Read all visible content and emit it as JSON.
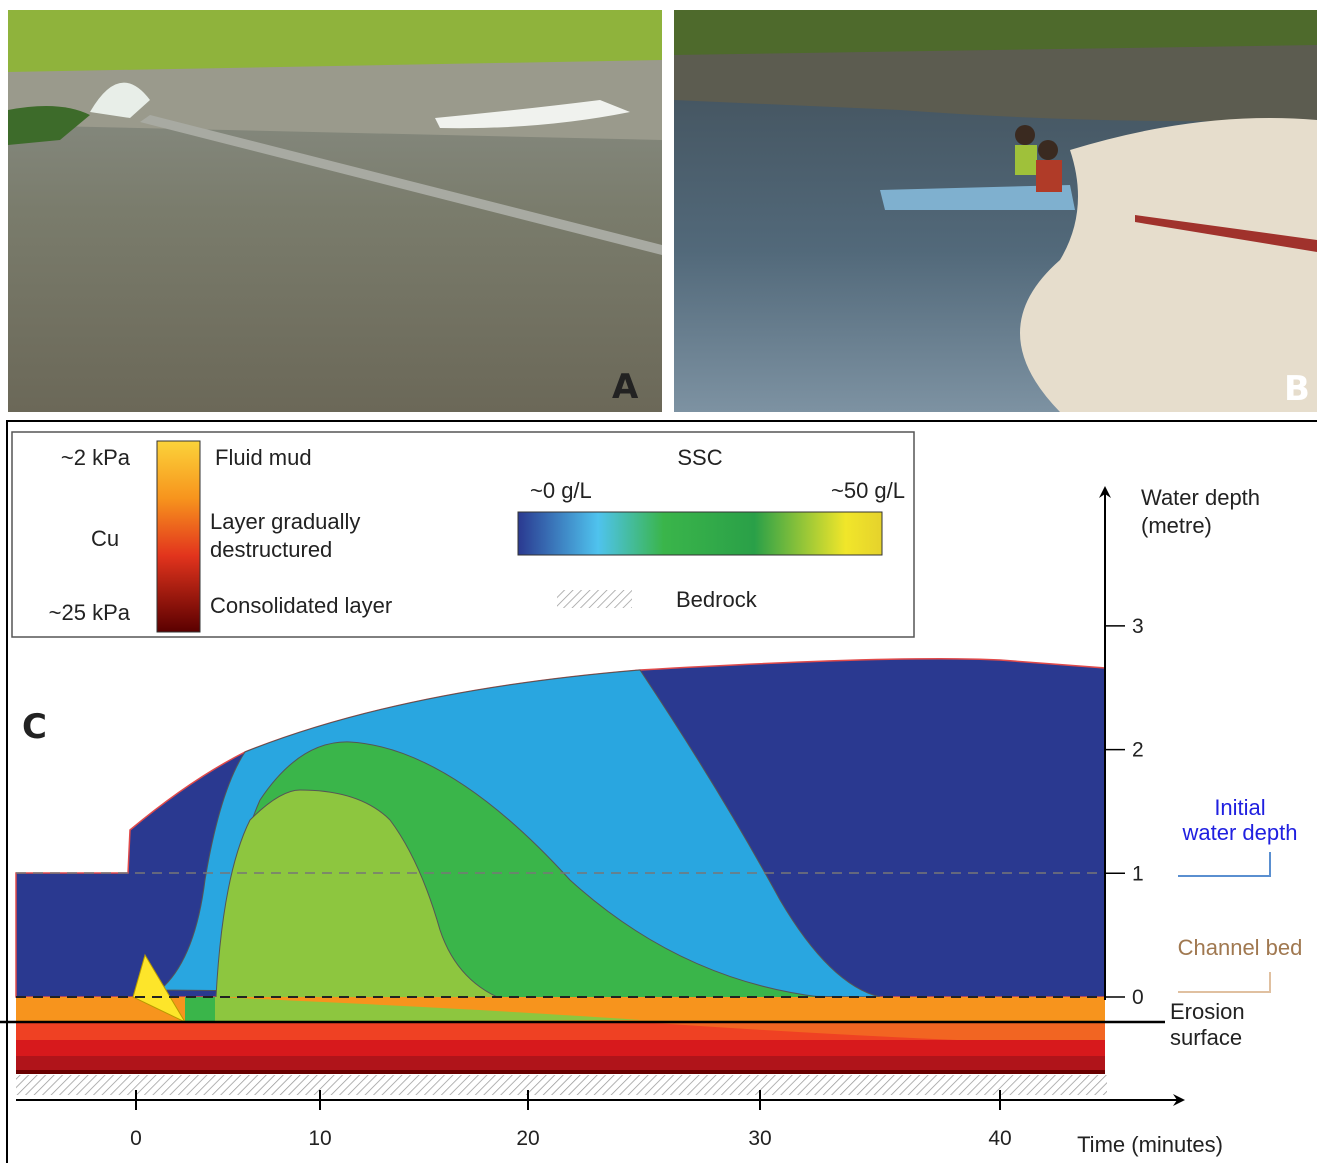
{
  "panels": {
    "a": {
      "label": "A"
    },
    "b": {
      "label": "B"
    }
  },
  "panel_c": {
    "label": "C",
    "legend": {
      "cu_high": "~2 kPa",
      "cu_label": "Cu",
      "cu_low": "~25 kPa",
      "fluid_mud": "Fluid mud",
      "layer_destructured": [
        "Layer gradually",
        "destructured"
      ],
      "consolidated": "Consolidated layer",
      "ssc_title": "SSC",
      "ssc_low": "~0 g/L",
      "ssc_high": "~50 g/L",
      "bedrock": "Bedrock"
    },
    "y_axis": {
      "label": [
        "Water depth",
        "(metre)"
      ],
      "ticks": [
        0,
        1,
        2,
        3
      ]
    },
    "x_axis": {
      "label": "Time (minutes)",
      "ticks": [
        0,
        10,
        20,
        30,
        40
      ]
    },
    "annotations": {
      "initial_water_depth": [
        "Initial",
        "water depth"
      ],
      "channel_bed": "Channel bed",
      "erosion_surface": [
        "Erosion",
        "surface"
      ]
    }
  }
}
